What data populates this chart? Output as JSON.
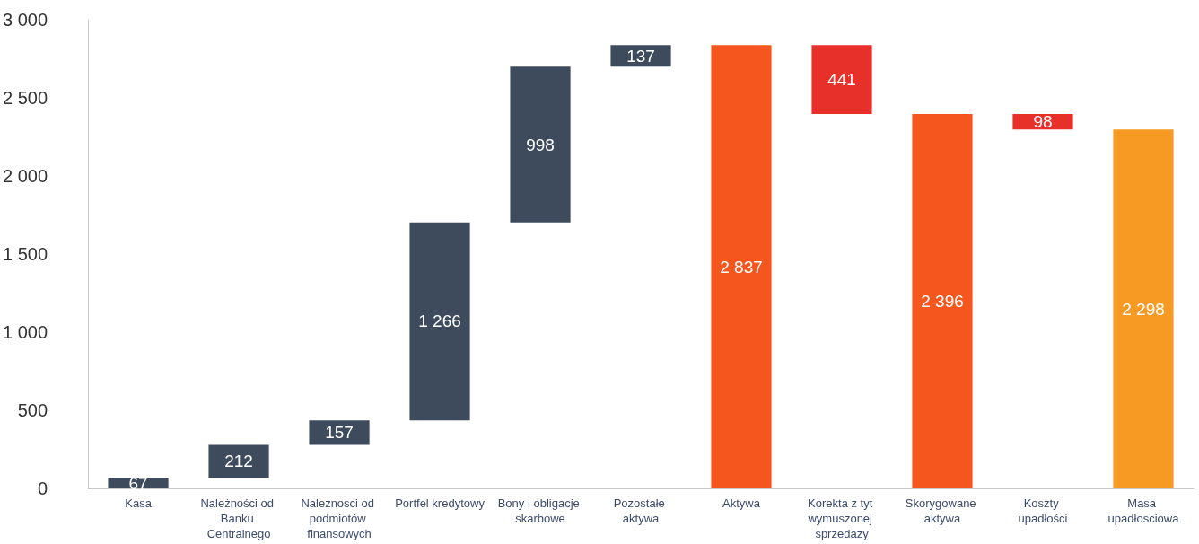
{
  "chart_data": {
    "type": "bar",
    "categories": [
      "Kasa",
      "Należności od Banku Centralnego",
      "Naleznosci od podmiotów finansowych",
      "Portfel kredytowy",
      "Bony i obligacje skarbowe",
      "Pozostałe aktywa",
      "Aktywa",
      "Korekta z tyt wymuszonej sprzedazy",
      "Skorygowane aktywa",
      "Koszty upadłości",
      "Masa upadłosciowa"
    ],
    "values": [
      67,
      212,
      157,
      1266,
      998,
      137,
      2837,
      441,
      2396,
      98,
      2298
    ],
    "base": [
      0,
      67,
      279,
      436,
      1702,
      2700,
      0,
      2396,
      0,
      2298,
      0
    ],
    "colors": [
      "#3d4b5d",
      "#3d4b5d",
      "#3d4b5d",
      "#3d4b5d",
      "#3d4b5d",
      "#3d4b5d",
      "#f4561e",
      "#e8302b",
      "#f4561e",
      "#e8302b",
      "#f69a24"
    ],
    "value_labels": [
      "67",
      "212",
      "157",
      "1 266",
      "998",
      "137",
      "2 837",
      "441",
      "2 396",
      "98",
      "2 298"
    ],
    "ylim": [
      0,
      3000
    ],
    "yticks": [
      0,
      500,
      {
        "value": 1000,
        "label": "1 000"
      },
      {
        "value": 1500,
        "label": "1 500"
      },
      {
        "value": 2000,
        "label": "2 000"
      },
      {
        "value": 2500,
        "label": "2 500"
      },
      {
        "value": 3000,
        "label": "3 000"
      }
    ],
    "grid": false
  }
}
